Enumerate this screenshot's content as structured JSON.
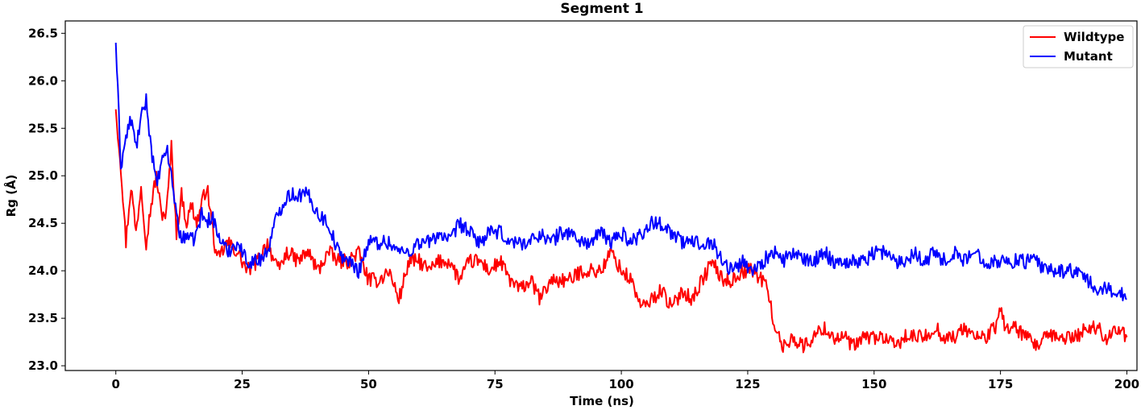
{
  "chart_data": {
    "type": "line",
    "title": "Segment 1",
    "xlabel": "Time (ns)",
    "ylabel": "Rg (Å)",
    "xlim": [
      -10,
      202
    ],
    "ylim": [
      22.95,
      26.63
    ],
    "xticks": [
      0,
      25,
      50,
      75,
      100,
      125,
      150,
      175,
      200
    ],
    "xtick_labels": [
      "0",
      "25",
      "50",
      "75",
      "100",
      "125",
      "150",
      "175",
      "200"
    ],
    "yticks": [
      23.0,
      23.5,
      24.0,
      24.5,
      25.0,
      25.5,
      26.0,
      26.5
    ],
    "ytick_labels": [
      "23.0",
      "23.5",
      "24.0",
      "24.5",
      "25.0",
      "25.5",
      "26.0",
      "26.5"
    ],
    "grid": false,
    "legend_position": "top-right",
    "series": [
      {
        "name": "Wildtype",
        "color": "#ff0000",
        "x": [
          0,
          1,
          2,
          3,
          4,
          5,
          6,
          7,
          8,
          9,
          10,
          11,
          12,
          13,
          14,
          15,
          16,
          17,
          18,
          19,
          20,
          22,
          24,
          26,
          28,
          30,
          32,
          34,
          36,
          38,
          40,
          42,
          44,
          46,
          48,
          50,
          52,
          54,
          56,
          58,
          60,
          62,
          64,
          66,
          68,
          70,
          72,
          74,
          76,
          78,
          80,
          82,
          84,
          86,
          88,
          90,
          92,
          94,
          96,
          98,
          100,
          102,
          104,
          106,
          108,
          110,
          112,
          114,
          116,
          118,
          120,
          122,
          124,
          126,
          128,
          129,
          130,
          131,
          132,
          134,
          136,
          138,
          140,
          142,
          144,
          146,
          148,
          150,
          152,
          154,
          156,
          158,
          160,
          162,
          164,
          166,
          168,
          170,
          172,
          174,
          175,
          176,
          178,
          180,
          182,
          184,
          186,
          188,
          190,
          192,
          194,
          196,
          198,
          200
        ],
        "values": [
          25.7,
          25.1,
          24.3,
          24.9,
          24.4,
          24.9,
          24.3,
          24.7,
          25.0,
          24.6,
          24.6,
          25.3,
          24.4,
          24.8,
          24.5,
          24.7,
          24.5,
          24.7,
          24.9,
          24.5,
          24.1,
          24.3,
          24.2,
          24.0,
          24.1,
          24.3,
          24.0,
          24.2,
          24.1,
          24.2,
          24.0,
          24.2,
          24.1,
          24.1,
          24.2,
          23.9,
          23.9,
          24.0,
          23.7,
          24.1,
          24.1,
          24.0,
          24.1,
          24.1,
          23.9,
          24.1,
          24.1,
          24.0,
          24.1,
          23.9,
          23.8,
          23.9,
          23.7,
          23.9,
          23.9,
          23.9,
          24.0,
          24.0,
          24.0,
          24.2,
          24.0,
          23.9,
          23.6,
          23.7,
          23.8,
          23.6,
          23.8,
          23.7,
          23.9,
          24.1,
          23.9,
          23.9,
          24.0,
          24.0,
          23.9,
          23.8,
          23.5,
          23.3,
          23.2,
          23.3,
          23.2,
          23.3,
          23.4,
          23.3,
          23.3,
          23.2,
          23.3,
          23.3,
          23.3,
          23.2,
          23.3,
          23.3,
          23.3,
          23.4,
          23.3,
          23.3,
          23.4,
          23.3,
          23.3,
          23.4,
          23.6,
          23.4,
          23.4,
          23.3,
          23.2,
          23.3,
          23.3,
          23.3,
          23.3,
          23.4,
          23.4,
          23.3,
          23.4,
          23.3
        ]
      },
      {
        "name": "Mutant",
        "color": "#0000ff",
        "x": [
          0,
          1,
          2,
          3,
          4,
          5,
          6,
          7,
          8,
          9,
          10,
          11,
          12,
          13,
          14,
          15,
          16,
          17,
          18,
          19,
          20,
          22,
          24,
          26,
          28,
          30,
          32,
          34,
          36,
          38,
          40,
          42,
          44,
          46,
          48,
          50,
          52,
          54,
          56,
          58,
          60,
          62,
          64,
          66,
          68,
          70,
          72,
          74,
          76,
          78,
          80,
          82,
          84,
          86,
          88,
          90,
          92,
          94,
          96,
          98,
          100,
          102,
          104,
          106,
          108,
          110,
          112,
          114,
          116,
          118,
          120,
          122,
          124,
          126,
          128,
          130,
          132,
          134,
          136,
          138,
          140,
          142,
          144,
          146,
          148,
          150,
          152,
          154,
          156,
          158,
          160,
          162,
          164,
          166,
          168,
          170,
          172,
          174,
          176,
          178,
          180,
          182,
          184,
          186,
          188,
          190,
          192,
          194,
          196,
          198,
          200
        ],
        "values": [
          26.4,
          25.1,
          25.4,
          25.6,
          25.3,
          25.6,
          25.8,
          25.3,
          24.9,
          25.1,
          25.3,
          25.0,
          24.6,
          24.3,
          24.4,
          24.3,
          24.4,
          24.6,
          24.5,
          24.6,
          24.4,
          24.2,
          24.3,
          24.1,
          24.1,
          24.2,
          24.6,
          24.8,
          24.8,
          24.8,
          24.6,
          24.5,
          24.2,
          24.1,
          24.0,
          24.3,
          24.3,
          24.3,
          24.2,
          24.2,
          24.3,
          24.3,
          24.4,
          24.3,
          24.5,
          24.4,
          24.3,
          24.4,
          24.4,
          24.3,
          24.3,
          24.3,
          24.4,
          24.3,
          24.4,
          24.4,
          24.3,
          24.3,
          24.4,
          24.3,
          24.4,
          24.3,
          24.4,
          24.5,
          24.5,
          24.4,
          24.3,
          24.3,
          24.3,
          24.3,
          24.1,
          24.0,
          24.1,
          24.0,
          24.1,
          24.2,
          24.1,
          24.2,
          24.1,
          24.1,
          24.2,
          24.1,
          24.1,
          24.1,
          24.1,
          24.2,
          24.2,
          24.1,
          24.1,
          24.2,
          24.1,
          24.2,
          24.1,
          24.2,
          24.1,
          24.2,
          24.1,
          24.1,
          24.1,
          24.1,
          24.1,
          24.1,
          24.0,
          24.0,
          24.0,
          24.0,
          23.9,
          23.8,
          23.8,
          23.8,
          23.7
        ]
      }
    ]
  }
}
